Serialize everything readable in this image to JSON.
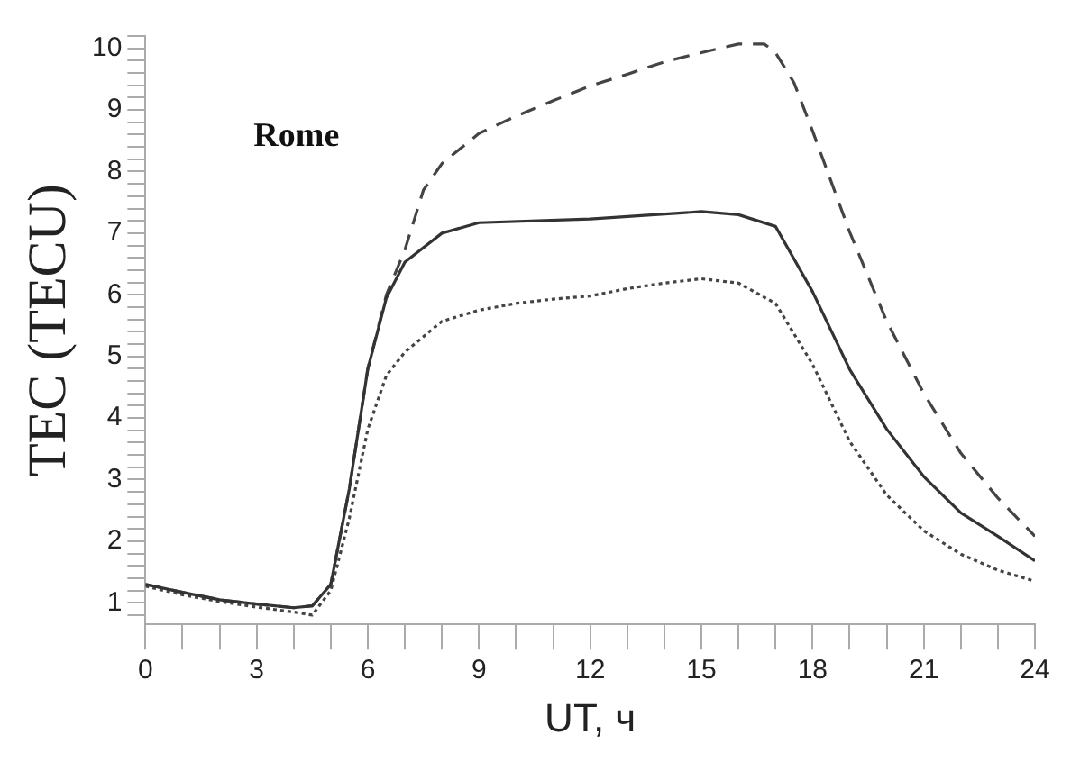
{
  "chart_data": {
    "type": "line",
    "xlabel": "UT, ч",
    "ylabel": "TEC (TECU)",
    "annotations": [
      "Rome"
    ],
    "xlim": [
      0,
      24
    ],
    "ylim": [
      0.65,
      10.2
    ],
    "xticks": [
      0,
      {
        "value": 1,
        "label": null
      },
      {
        "value": 2,
        "label": null
      },
      3,
      {
        "value": 4,
        "label": null
      },
      {
        "value": 5,
        "label": null
      },
      6,
      {
        "value": 7,
        "label": null
      },
      {
        "value": 8,
        "label": null
      },
      9,
      {
        "value": 10,
        "label": null
      },
      {
        "value": 11,
        "label": null
      },
      12,
      {
        "value": 13,
        "label": null
      },
      {
        "value": 14,
        "label": null
      },
      15,
      {
        "value": 16,
        "label": null
      },
      {
        "value": 17,
        "label": null
      },
      18,
      {
        "value": 19,
        "label": null
      },
      {
        "value": 20,
        "label": null
      },
      21,
      {
        "value": 22,
        "label": null
      },
      {
        "value": 23,
        "label": null
      },
      24
    ],
    "yticks": [
      {
        "value": 0.8,
        "label": null
      },
      1,
      {
        "value": 1.2,
        "label": null
      },
      {
        "value": 1.4,
        "label": null
      },
      {
        "value": 1.6,
        "label": null
      },
      {
        "value": 1.8,
        "label": null
      },
      2,
      {
        "value": 2.2,
        "label": null
      },
      {
        "value": 2.4,
        "label": null
      },
      {
        "value": 2.6,
        "label": null
      },
      {
        "value": 2.8,
        "label": null
      },
      3,
      {
        "value": 3.2,
        "label": null
      },
      {
        "value": 3.4,
        "label": null
      },
      {
        "value": 3.6,
        "label": null
      },
      {
        "value": 3.8,
        "label": null
      },
      4,
      {
        "value": 4.2,
        "label": null
      },
      {
        "value": 4.4,
        "label": null
      },
      {
        "value": 4.6,
        "label": null
      },
      {
        "value": 4.8,
        "label": null
      },
      5,
      {
        "value": 5.2,
        "label": null
      },
      {
        "value": 5.4,
        "label": null
      },
      {
        "value": 5.6,
        "label": null
      },
      {
        "value": 5.8,
        "label": null
      },
      6,
      {
        "value": 6.2,
        "label": null
      },
      {
        "value": 6.4,
        "label": null
      },
      {
        "value": 6.6,
        "label": null
      },
      {
        "value": 6.8,
        "label": null
      },
      7,
      {
        "value": 7.2,
        "label": null
      },
      {
        "value": 7.4,
        "label": null
      },
      {
        "value": 7.6,
        "label": null
      },
      {
        "value": 7.8,
        "label": null
      },
      8,
      {
        "value": 8.2,
        "label": null
      },
      {
        "value": 8.4,
        "label": null
      },
      {
        "value": 8.6,
        "label": null
      },
      {
        "value": 8.8,
        "label": null
      },
      9,
      {
        "value": 9.2,
        "label": null
      },
      {
        "value": 9.4,
        "label": null
      },
      {
        "value": 9.6,
        "label": null
      },
      {
        "value": 9.8,
        "label": null
      },
      10,
      {
        "value": 10.2,
        "label": null
      }
    ],
    "grid": false,
    "legend": false,
    "series": [
      {
        "color": "#333333",
        "line_style": "solid",
        "x": [
          0,
          1,
          2,
          3,
          4,
          4.5,
          5,
          5.5,
          6,
          6.5,
          7,
          8,
          9,
          12,
          15,
          16,
          17,
          18,
          19,
          20,
          21,
          22,
          23,
          24
        ],
        "values": [
          1.3,
          1.17,
          1.05,
          0.98,
          0.92,
          0.95,
          1.3,
          2.85,
          4.8,
          5.95,
          6.53,
          7.0,
          7.17,
          7.23,
          7.35,
          7.3,
          7.11,
          6.05,
          4.79,
          3.82,
          3.05,
          2.46,
          2.08,
          1.68
        ]
      },
      {
        "color": "#444444",
        "line_style": "dashed",
        "x": [
          0,
          1,
          2,
          3,
          4,
          4.5,
          5,
          5.5,
          6,
          6.5,
          7,
          7.5,
          8,
          9,
          10,
          11,
          12,
          13,
          14,
          15,
          16,
          16.7,
          17,
          17.5,
          18,
          19,
          20,
          21,
          22,
          23,
          24
        ],
        "values": [
          1.3,
          1.17,
          1.05,
          0.98,
          0.92,
          0.95,
          1.3,
          2.85,
          4.8,
          6.0,
          6.73,
          7.7,
          8.13,
          8.62,
          8.9,
          9.15,
          9.39,
          9.58,
          9.78,
          9.93,
          10.07,
          10.07,
          9.93,
          9.44,
          8.66,
          7.02,
          5.57,
          4.4,
          3.43,
          2.7,
          2.08
        ]
      },
      {
        "color": "#444444",
        "line_style": "dotted",
        "x": [
          0,
          1,
          2,
          3,
          4,
          4.5,
          5,
          5.5,
          6,
          6.5,
          7,
          8,
          9,
          10,
          11,
          12,
          13,
          14,
          15,
          16,
          17,
          18,
          19,
          20,
          21,
          22,
          23,
          24
        ],
        "values": [
          1.27,
          1.13,
          1.02,
          0.93,
          0.85,
          0.8,
          1.2,
          2.37,
          3.82,
          4.69,
          5.07,
          5.57,
          5.75,
          5.86,
          5.93,
          5.98,
          6.1,
          6.19,
          6.26,
          6.19,
          5.86,
          4.87,
          3.62,
          2.75,
          2.17,
          1.79,
          1.53,
          1.35
        ]
      }
    ]
  }
}
